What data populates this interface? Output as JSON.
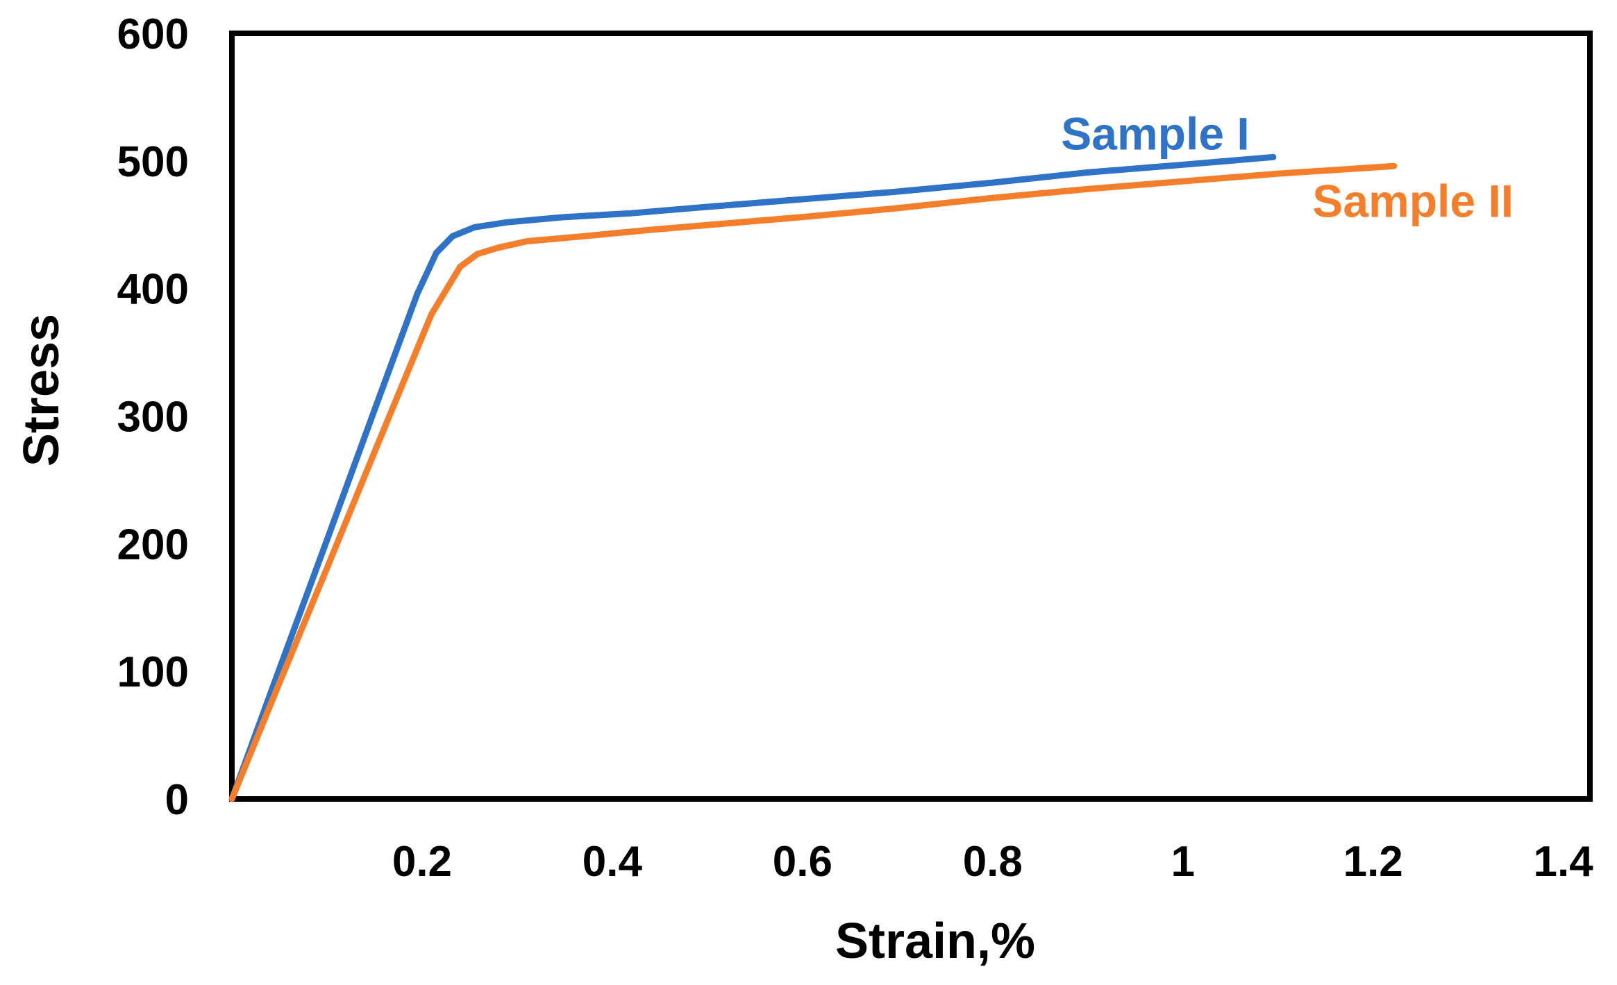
{
  "chart_data": {
    "type": "line",
    "title": "",
    "xlabel": "Strain,%",
    "ylabel": "Stress",
    "xlim": [
      0,
      1.428
    ],
    "ylim": [
      0,
      600
    ],
    "x_tick_values": [
      0.2,
      0.4,
      0.6,
      0.8,
      1.0,
      1.2,
      1.4
    ],
    "x_tick_labels": [
      "0.2",
      "0.4",
      "0.6",
      "0.8",
      "1",
      "1.2",
      "1.4"
    ],
    "y_tick_values": [
      0,
      100,
      200,
      300,
      400,
      500,
      600
    ],
    "y_tick_labels": [
      "0",
      "100",
      "200",
      "300",
      "400",
      "500",
      "600"
    ],
    "grid": false,
    "legend_position": "inline-labels-near-curve-ends",
    "plot_border_color": "#000000",
    "plot_background": "#ffffff",
    "series": [
      {
        "name": "Sample I",
        "color": "#2E73C8",
        "label_at": [
          0.971,
          509
        ],
        "points": [
          [
            0,
            0
          ],
          [
            0.05,
            102
          ],
          [
            0.1,
            203
          ],
          [
            0.15,
            305
          ],
          [
            0.195,
            396
          ],
          [
            0.215,
            428
          ],
          [
            0.232,
            441
          ],
          [
            0.255,
            448
          ],
          [
            0.29,
            452
          ],
          [
            0.35,
            456
          ],
          [
            0.42,
            459
          ],
          [
            0.5,
            464
          ],
          [
            0.6,
            470
          ],
          [
            0.7,
            476
          ],
          [
            0.8,
            483
          ],
          [
            0.9,
            491
          ],
          [
            1.0,
            497
          ],
          [
            1.095,
            503
          ]
        ]
      },
      {
        "name": "Sample II",
        "color": "#F57E2A",
        "label_at": [
          1.242,
          456
        ],
        "points": [
          [
            0,
            0
          ],
          [
            0.05,
            91
          ],
          [
            0.1,
            181
          ],
          [
            0.15,
            272
          ],
          [
            0.21,
            380
          ],
          [
            0.24,
            417
          ],
          [
            0.258,
            427
          ],
          [
            0.28,
            432
          ],
          [
            0.31,
            437
          ],
          [
            0.37,
            441
          ],
          [
            0.44,
            446
          ],
          [
            0.52,
            451
          ],
          [
            0.6,
            456
          ],
          [
            0.7,
            463
          ],
          [
            0.8,
            471
          ],
          [
            0.9,
            478
          ],
          [
            1.0,
            484
          ],
          [
            1.1,
            490
          ],
          [
            1.222,
            496
          ]
        ]
      }
    ]
  }
}
